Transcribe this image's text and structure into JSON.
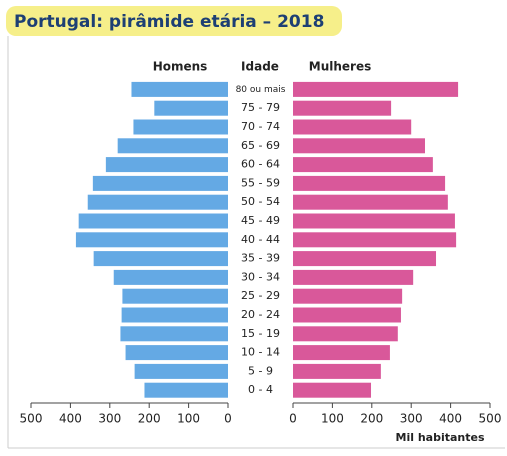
{
  "chart_data": {
    "type": "population-pyramid",
    "title": "Portugal: pirâmide etária – 2018",
    "category_label": "Idade",
    "x_label": "Mil habitantes",
    "categories": [
      "80 ou mais",
      "75 - 79",
      "70 - 74",
      "65 - 69",
      "60 - 64",
      "55 - 59",
      "50 - 54",
      "45 - 49",
      "40 - 44",
      "35 - 39",
      "30 - 34",
      "25 - 29",
      "20 - 24",
      "15 - 19",
      "10 - 14",
      "5 - 9",
      "0 - 4"
    ],
    "series": [
      {
        "name": "Homens",
        "color": "#64a9e4",
        "values": [
          245,
          187,
          240,
          280,
          310,
          343,
          356,
          379,
          386,
          341,
          290,
          268,
          270,
          273,
          260,
          237,
          212
        ]
      },
      {
        "name": "Mulheres",
        "color": "#d9589a",
        "values": [
          419,
          249,
          300,
          335,
          355,
          386,
          393,
          411,
          414,
          363,
          305,
          277,
          274,
          266,
          246,
          223,
          198
        ]
      }
    ],
    "xlim": [
      0,
      500
    ],
    "xticks": [
      0,
      100,
      200,
      300,
      400,
      500
    ]
  }
}
